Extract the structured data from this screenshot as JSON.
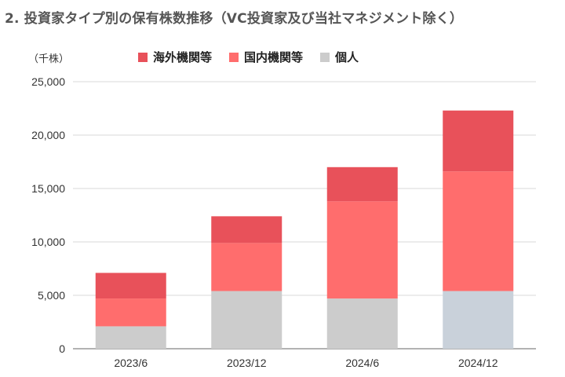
{
  "chart_data": {
    "type": "bar",
    "stacked": true,
    "title": "2. 投資家タイプ別の保有株数推移（VC投資家及び当社マネジメント除く）",
    "unit_label": "（千株）",
    "categories": [
      "2023/6",
      "2023/12",
      "2024/6",
      "2024/12"
    ],
    "series": [
      {
        "name": "個人",
        "color": "#cccccc",
        "values": [
          2100,
          5400,
          4700,
          5400
        ]
      },
      {
        "name": "国内機関等",
        "color": "#ff6d6d",
        "values": [
          2600,
          4500,
          9100,
          11200
        ]
      },
      {
        "name": "海外機関等",
        "color": "#e8515a",
        "values": [
          2400,
          2500,
          3200,
          5700
        ]
      }
    ],
    "bar_color_overrides": [
      {
        "series": 0,
        "category": 3,
        "color": "#c9d1da"
      }
    ],
    "legend_order": [
      2,
      1,
      0
    ],
    "ylim": [
      0,
      25000
    ],
    "yticks": [
      0,
      5000,
      10000,
      15000,
      20000,
      25000
    ],
    "ytick_labels": [
      "0",
      "5,000",
      "10,000",
      "15,000",
      "20,000",
      "25,000"
    ],
    "grid": true,
    "legend_position": "top"
  }
}
